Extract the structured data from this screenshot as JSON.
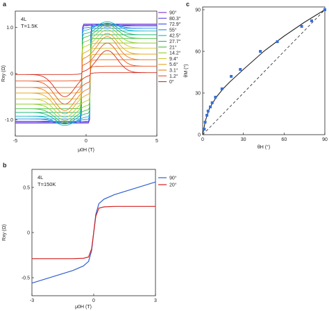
{
  "panels": [
    {
      "letter": "a"
    },
    {
      "letter": "b"
    },
    {
      "letter": "c"
    }
  ],
  "chart_data": [
    {
      "panel": "a",
      "type": "line",
      "annotation_lines": [
        "4L",
        "T=1.5K"
      ],
      "xlabel": "μ0H (T)",
      "ylabel": "Rxy (Ω)",
      "xlim": [
        -5,
        5
      ],
      "ylim": [
        -1.35,
        1.35
      ],
      "xticks": [
        -5,
        0,
        5
      ],
      "xtick_labels": [
        "-5",
        "0",
        "5"
      ],
      "yticks": [
        -1.0,
        0,
        1.0
      ],
      "ytick_labels": [
        "-1.0",
        "0",
        "1.0"
      ],
      "legend_position": "right",
      "coercive_field": 0.3,
      "series": [
        {
          "name": "90°",
          "color": "#7b2ad6",
          "sat": 1.07,
          "peak": 0.0
        },
        {
          "name": "80.3°",
          "color": "#5a3fe0",
          "sat": 1.05,
          "peak": 0.0
        },
        {
          "name": "72.9°",
          "color": "#3550e6",
          "sat": 1.03,
          "peak": 0.05
        },
        {
          "name": "55°",
          "color": "#1e88e5",
          "sat": 0.98,
          "peak": 0.1
        },
        {
          "name": "42.5°",
          "color": "#17b6c9",
          "sat": 0.92,
          "peak": 0.2
        },
        {
          "name": "27.7°",
          "color": "#1fb87a",
          "sat": 0.84,
          "peak": 0.25
        },
        {
          "name": "21°",
          "color": "#3fbf3a",
          "sat": 0.76,
          "peak": 0.3
        },
        {
          "name": "14.2°",
          "color": "#8ccc2a",
          "sat": 0.66,
          "peak": 0.35
        },
        {
          "name": "9.4°",
          "color": "#c9c72a",
          "sat": 0.55,
          "peak": 0.4
        },
        {
          "name": "5.6°",
          "color": "#e8a420",
          "sat": 0.42,
          "peak": 0.45
        },
        {
          "name": "3.1°",
          "color": "#ee7a1f",
          "sat": 0.3,
          "peak": 0.5
        },
        {
          "name": "1.2°",
          "color": "#e8511f",
          "sat": 0.16,
          "peak": 0.5
        },
        {
          "name": "0°",
          "color": "#d42a1a",
          "sat": 0.02,
          "peak": 0.48
        }
      ]
    },
    {
      "panel": "b",
      "type": "line",
      "annotation_lines": [
        "4L",
        "T=150K"
      ],
      "xlabel": "μ0H (T)",
      "ylabel": "Rxy (Ω)",
      "xlim": [
        -3,
        3
      ],
      "ylim": [
        -0.7,
        0.7
      ],
      "xticks": [
        -3,
        0,
        3
      ],
      "xtick_labels": [
        "-3",
        "0",
        "3"
      ],
      "yticks": [
        -0.5,
        0,
        0.5
      ],
      "ytick_labels": [
        "-0.5",
        "0",
        "0.5"
      ],
      "legend_position": "right",
      "series": [
        {
          "name": "90°",
          "color": "#2f5fcf",
          "x": [
            -3,
            -2,
            -1,
            -0.5,
            -0.25,
            -0.1,
            0,
            0.1,
            0.25,
            0.5,
            1,
            2,
            3
          ],
          "y": [
            -0.56,
            -0.49,
            -0.42,
            -0.37,
            -0.32,
            -0.2,
            0,
            0.2,
            0.32,
            0.37,
            0.42,
            0.49,
            0.56
          ]
        },
        {
          "name": "20°",
          "color": "#d42020",
          "x": [
            -3,
            -2,
            -1,
            -0.5,
            -0.25,
            -0.1,
            0,
            0.1,
            0.25,
            0.5,
            1,
            2,
            3
          ],
          "y": [
            -0.29,
            -0.29,
            -0.29,
            -0.285,
            -0.27,
            -0.18,
            0,
            0.18,
            0.27,
            0.285,
            0.29,
            0.29,
            0.29
          ]
        }
      ]
    },
    {
      "panel": "c",
      "type": "scatter",
      "xlabel": "θH (°)",
      "ylabel": "θM (°)",
      "xlim": [
        0,
        90
      ],
      "ylim": [
        0,
        92
      ],
      "xticks": [
        0,
        30,
        60,
        90
      ],
      "xtick_labels": [
        "0",
        "30",
        "60",
        "90"
      ],
      "yticks": [
        0,
        30,
        60,
        90
      ],
      "ytick_labels": [
        "0",
        "30",
        "60",
        "90"
      ],
      "points_color": "#3a6fd8",
      "points": {
        "x": [
          1.2,
          1.8,
          3.1,
          4.0,
          5.6,
          7.0,
          9.4,
          14.2,
          21,
          27.7,
          42.5,
          55,
          72.9,
          80.3,
          90
        ],
        "y": [
          4,
          9,
          14,
          17,
          20,
          23,
          27,
          33,
          42,
          47,
          60,
          67,
          78,
          82,
          90
        ]
      },
      "fit_curve": {
        "x": [
          0,
          2,
          5,
          10,
          15,
          20,
          30,
          45,
          60,
          75,
          90
        ],
        "y": [
          0,
          10,
          19,
          27,
          33,
          38,
          47,
          60,
          71,
          81,
          90
        ]
      },
      "reference_line": {
        "x": [
          0,
          90
        ],
        "y": [
          0,
          90
        ]
      }
    }
  ]
}
